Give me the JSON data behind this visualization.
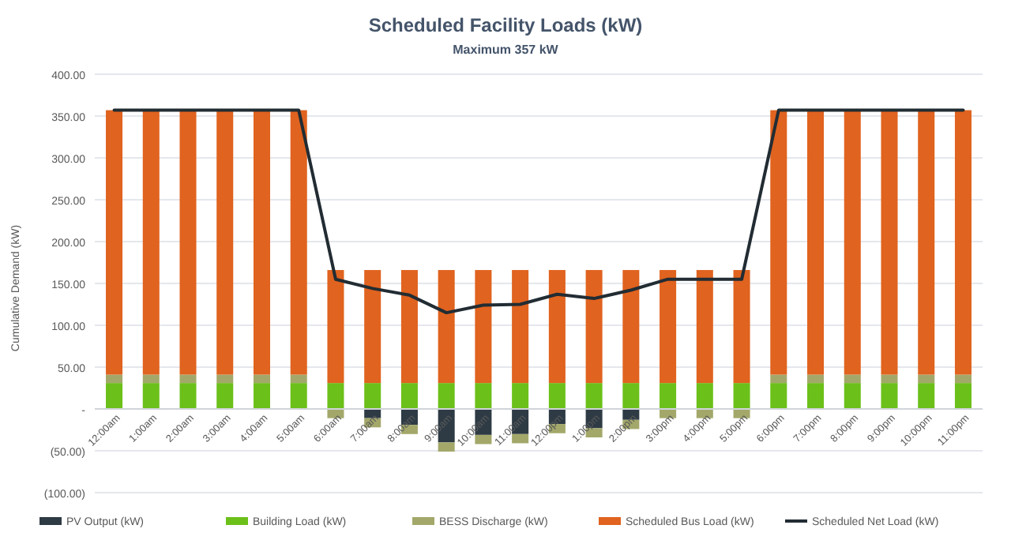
{
  "chart_data": {
    "type": "bar",
    "stacked": true,
    "title": "Scheduled Facility Loads (kW)",
    "subtitle": "Maximum 357 kW",
    "ylabel": "Cumulative Demand (kW)",
    "categories": [
      "12:00am",
      "1:00am",
      "2:00am",
      "3:00am",
      "4:00am",
      "5:00am",
      "6:00am",
      "7:00am",
      "8:00am",
      "9:00am",
      "10:00am",
      "11:00am",
      "12:00pm",
      "1:00pm",
      "2:00pm",
      "3:00pm",
      "4:00pm",
      "5:00pm",
      "6:00pm",
      "7:00pm",
      "8:00pm",
      "9:00pm",
      "10:00pm",
      "11:00pm"
    ],
    "series": [
      {
        "name": "PV Output (kW)",
        "color": "#2e3b45",
        "values": [
          0,
          0,
          0,
          0,
          0,
          0,
          0,
          -11,
          -19,
          -40,
          -31,
          -30,
          -18,
          -23,
          -13,
          0,
          0,
          0,
          0,
          0,
          0,
          0,
          0,
          0
        ]
      },
      {
        "name": "Building Load (kW)",
        "color": "#6cc01a",
        "values": [
          31,
          31,
          31,
          31,
          31,
          31,
          31,
          31,
          31,
          31,
          31,
          31,
          31,
          31,
          31,
          31,
          31,
          31,
          31,
          31,
          31,
          31,
          31,
          31
        ]
      },
      {
        "name": "BESS Discharge (kW)",
        "color": "#a3a86a",
        "values": [
          10,
          10,
          10,
          10,
          10,
          10,
          -11,
          -11,
          -11,
          -11,
          -11,
          -11,
          -11,
          -11,
          -11,
          -11,
          -11,
          -11,
          10,
          10,
          10,
          10,
          10,
          10
        ]
      },
      {
        "name": "Scheduled Bus Load (kW)",
        "color": "#e0631f",
        "values": [
          316,
          316,
          316,
          316,
          316,
          316,
          135,
          135,
          135,
          135,
          135,
          135,
          135,
          135,
          135,
          135,
          135,
          135,
          316,
          316,
          316,
          316,
          316,
          316
        ]
      },
      {
        "name": "Scheduled Net Load (kW)",
        "type": "line",
        "color": "#222c33",
        "values": [
          357,
          357,
          357,
          357,
          357,
          357,
          155,
          144,
          136,
          115,
          124,
          125,
          137,
          132,
          142,
          155,
          155,
          155,
          357,
          357,
          357,
          357,
          357,
          357
        ]
      }
    ],
    "ylim": [
      -100,
      400
    ],
    "yticks": [
      {
        "value": -100,
        "label": "(100.00)"
      },
      {
        "value": -50,
        "label": "(50.00)"
      },
      {
        "value": 0,
        "label": "-"
      },
      {
        "value": 50,
        "label": "50.00"
      },
      {
        "value": 100,
        "label": "100.00"
      },
      {
        "value": 150,
        "label": "150.00"
      },
      {
        "value": 200,
        "label": "200.00"
      },
      {
        "value": 250,
        "label": "250.00"
      },
      {
        "value": 300,
        "label": "300.00"
      },
      {
        "value": 350,
        "label": "350.00"
      },
      {
        "value": 400,
        "label": "400.00"
      }
    ],
    "grid": "y",
    "legend": "bottom",
    "marker": "none"
  }
}
